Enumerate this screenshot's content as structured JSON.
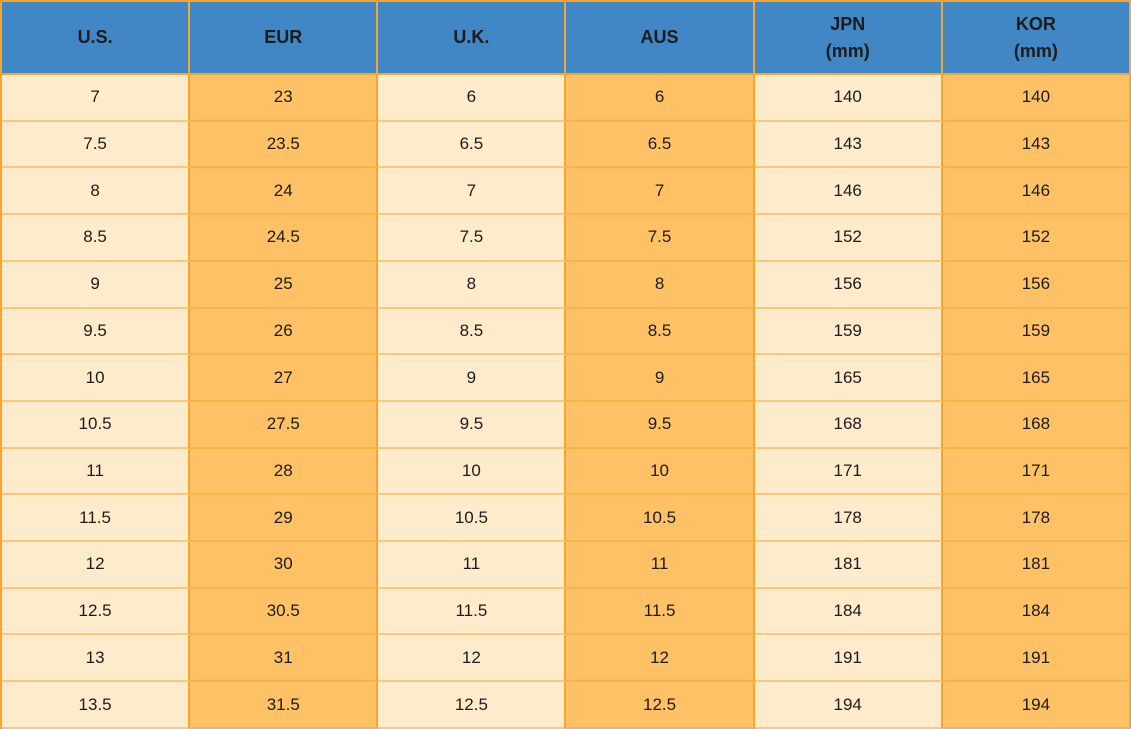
{
  "chart_data": {
    "type": "table",
    "columns": [
      {
        "key": "us",
        "label": "U.S."
      },
      {
        "key": "eur",
        "label": "EUR"
      },
      {
        "key": "uk",
        "label": "U.K."
      },
      {
        "key": "aus",
        "label": "AUS"
      },
      {
        "key": "jpn",
        "label": "JPN",
        "sublabel": "(mm)"
      },
      {
        "key": "kor",
        "label": "KOR",
        "sublabel": "(mm)"
      }
    ],
    "rows": [
      [
        "7",
        "23",
        "6",
        "6",
        "140",
        "140"
      ],
      [
        "7.5",
        "23.5",
        "6.5",
        "6.5",
        "143",
        "143"
      ],
      [
        "8",
        "24",
        "7",
        "7",
        "146",
        "146"
      ],
      [
        "8.5",
        "24.5",
        "7.5",
        "7.5",
        "152",
        "152"
      ],
      [
        "9",
        "25",
        "8",
        "8",
        "156",
        "156"
      ],
      [
        "9.5",
        "26",
        "8.5",
        "8.5",
        "159",
        "159"
      ],
      [
        "10",
        "27",
        "9",
        "9",
        "165",
        "165"
      ],
      [
        "10.5",
        "27.5",
        "9.5",
        "9.5",
        "168",
        "168"
      ],
      [
        "11",
        "28",
        "10",
        "10",
        "171",
        "171"
      ],
      [
        "11.5",
        "29",
        "10.5",
        "10.5",
        "178",
        "178"
      ],
      [
        "12",
        "30",
        "11",
        "11",
        "181",
        "181"
      ],
      [
        "12.5",
        "30.5",
        "11.5",
        "11.5",
        "184",
        "184"
      ],
      [
        "13",
        "31",
        "12",
        "12",
        "191",
        "191"
      ],
      [
        "13.5",
        "31.5",
        "12.5",
        "12.5",
        "194",
        "194"
      ]
    ]
  },
  "colors": {
    "header_bg": "#4187C6",
    "cream_cell": "#FDEBCB",
    "orange_cell": "#FFC166",
    "grid_line": "#F6A62D",
    "grid_line_soft": "rgba(246,166,45,0.5)",
    "text": "#1C1C1C"
  }
}
